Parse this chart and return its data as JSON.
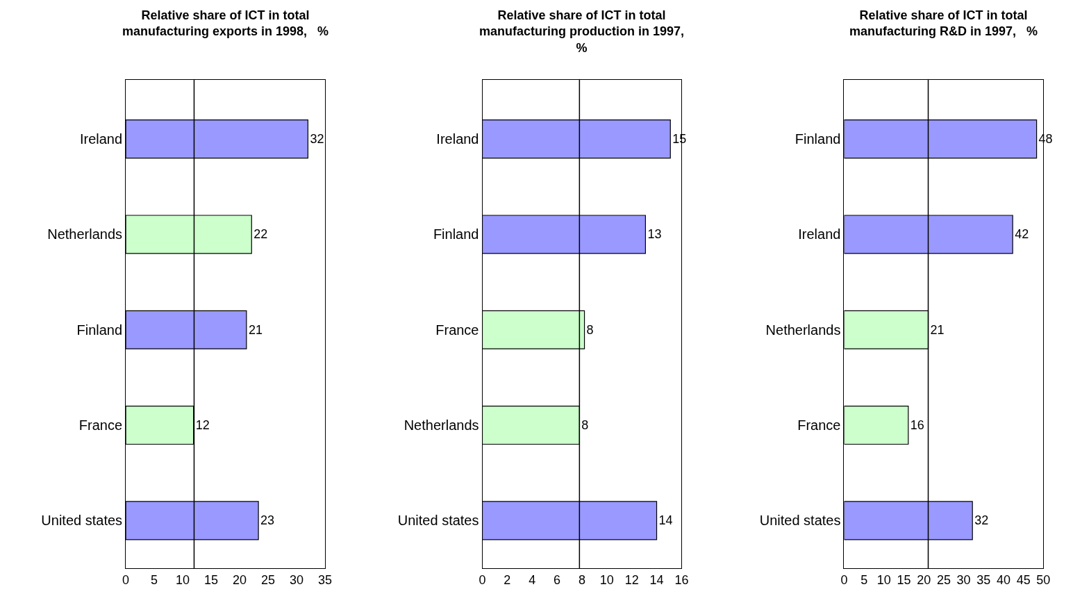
{
  "chart_data": [
    {
      "type": "bar",
      "orientation": "horizontal",
      "title": "Relative share of ICT in total\nmanufacturing exports in 1998,   %",
      "categories": [
        "Ireland",
        "Netherlands",
        "Finland",
        "France",
        "United states"
      ],
      "values": [
        32.0,
        22.1,
        21.2,
        11.9,
        23.3
      ],
      "value_labels": [
        "32",
        "22",
        "21",
        "12",
        "23"
      ],
      "colors": [
        "#9999ff",
        "#ccffcc",
        "#9999ff",
        "#ccffcc",
        "#9999ff"
      ],
      "xlim": [
        0,
        35
      ],
      "xticks": [
        0,
        5,
        10,
        15,
        20,
        25,
        30,
        35
      ],
      "ref_lines": [
        {
          "axis": "x",
          "value": 12.0,
          "color": "#000000"
        }
      ]
    },
    {
      "type": "bar",
      "orientation": "horizontal",
      "title": "Relative share of ICT in total\nmanufacturing production in 1997,\n%",
      "categories": [
        "Ireland",
        "Finland",
        "France",
        "Netherlands",
        "United states"
      ],
      "values": [
        15.1,
        13.1,
        8.2,
        7.8,
        14.0
      ],
      "value_labels": [
        "15",
        "13",
        "8",
        "8",
        "14"
      ],
      "colors": [
        "#9999ff",
        "#9999ff",
        "#ccffcc",
        "#ccffcc",
        "#9999ff"
      ],
      "xlim": [
        0,
        16
      ],
      "xticks": [
        0,
        2,
        4,
        6,
        8,
        10,
        12,
        14,
        16
      ],
      "ref_lines": [
        {
          "axis": "x",
          "value": 7.8,
          "color": "#000000"
        }
      ]
    },
    {
      "type": "bar",
      "orientation": "horizontal",
      "title": "Relative share of ICT in total\nmanufacturing R&D in 1997,   %",
      "categories": [
        "Finland",
        "Ireland",
        "Netherlands",
        "France",
        "United states"
      ],
      "values": [
        48.3,
        42.3,
        21.1,
        16.1,
        32.2
      ],
      "value_labels": [
        "48",
        "42",
        "21",
        "16",
        "32"
      ],
      "colors": [
        "#9999ff",
        "#9999ff",
        "#ccffcc",
        "#ccffcc",
        "#9999ff"
      ],
      "xlim": [
        0,
        50
      ],
      "xticks": [
        0,
        5,
        10,
        15,
        20,
        25,
        30,
        35,
        40,
        45,
        50
      ],
      "ref_lines": [
        {
          "axis": "x",
          "value": 21.1,
          "color": "#000000"
        }
      ]
    }
  ]
}
